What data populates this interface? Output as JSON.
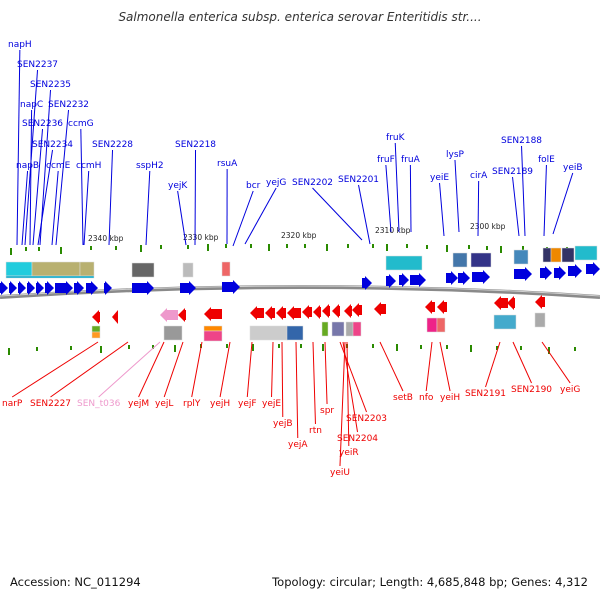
{
  "title": "Salmonella enterica subsp. enterica serovar Enteritidis str....",
  "footer": {
    "accession": "Accession: NC_011294",
    "summary": "Topology: circular; Length: 4,685,848 bp; Genes: 4,312"
  },
  "colors": {
    "forward": "#0000dd",
    "reverse": "#ee0000",
    "pseudo": "#ee99cc",
    "backbone": "#888888"
  },
  "scale_labels": [
    {
      "text": "2340 kbp"
    },
    {
      "text": "2330 kbp"
    },
    {
      "text": "2320 kbp"
    },
    {
      "text": "2310 kbp"
    },
    {
      "text": "2300 kbp"
    }
  ],
  "forward_genes": [
    {
      "name": "napH"
    },
    {
      "name": "SEN2237"
    },
    {
      "name": "SEN2235"
    },
    {
      "name": "napC"
    },
    {
      "name": "SEN2232"
    },
    {
      "name": "SEN2236"
    },
    {
      "name": "ccmG"
    },
    {
      "name": "SEN2234"
    },
    {
      "name": "napB"
    },
    {
      "name": "ccmE"
    },
    {
      "name": "ccmH"
    },
    {
      "name": "SEN2228"
    },
    {
      "name": "sspH2"
    },
    {
      "name": "SEN2218"
    },
    {
      "name": "yejK"
    },
    {
      "name": "rsuA"
    },
    {
      "name": "bcr"
    },
    {
      "name": "yejG"
    },
    {
      "name": "SEN2202"
    },
    {
      "name": "SEN2201"
    },
    {
      "name": "fruK"
    },
    {
      "name": "fruF"
    },
    {
      "name": "fruA"
    },
    {
      "name": "lysP"
    },
    {
      "name": "yeiE"
    },
    {
      "name": "cirA"
    },
    {
      "name": "SEN2188"
    },
    {
      "name": "SEN2189"
    },
    {
      "name": "folE"
    },
    {
      "name": "yeiB"
    }
  ],
  "reverse_genes": [
    {
      "name": "narP"
    },
    {
      "name": "SEN2227"
    },
    {
      "name": "SEN_t036",
      "pseudo": true
    },
    {
      "name": "yejM"
    },
    {
      "name": "yejL"
    },
    {
      "name": "rplY"
    },
    {
      "name": "yejH"
    },
    {
      "name": "yejF"
    },
    {
      "name": "yejE"
    },
    {
      "name": "yejB"
    },
    {
      "name": "yejA"
    },
    {
      "name": "rtn"
    },
    {
      "name": "spr"
    },
    {
      "name": "SEN2203"
    },
    {
      "name": "SEN2204"
    },
    {
      "name": "yeiR"
    },
    {
      "name": "yeiU"
    },
    {
      "name": "setB"
    },
    {
      "name": "nfo"
    },
    {
      "name": "yeiH"
    },
    {
      "name": "SEN2191"
    },
    {
      "name": "SEN2190"
    },
    {
      "name": "yeiG"
    }
  ]
}
